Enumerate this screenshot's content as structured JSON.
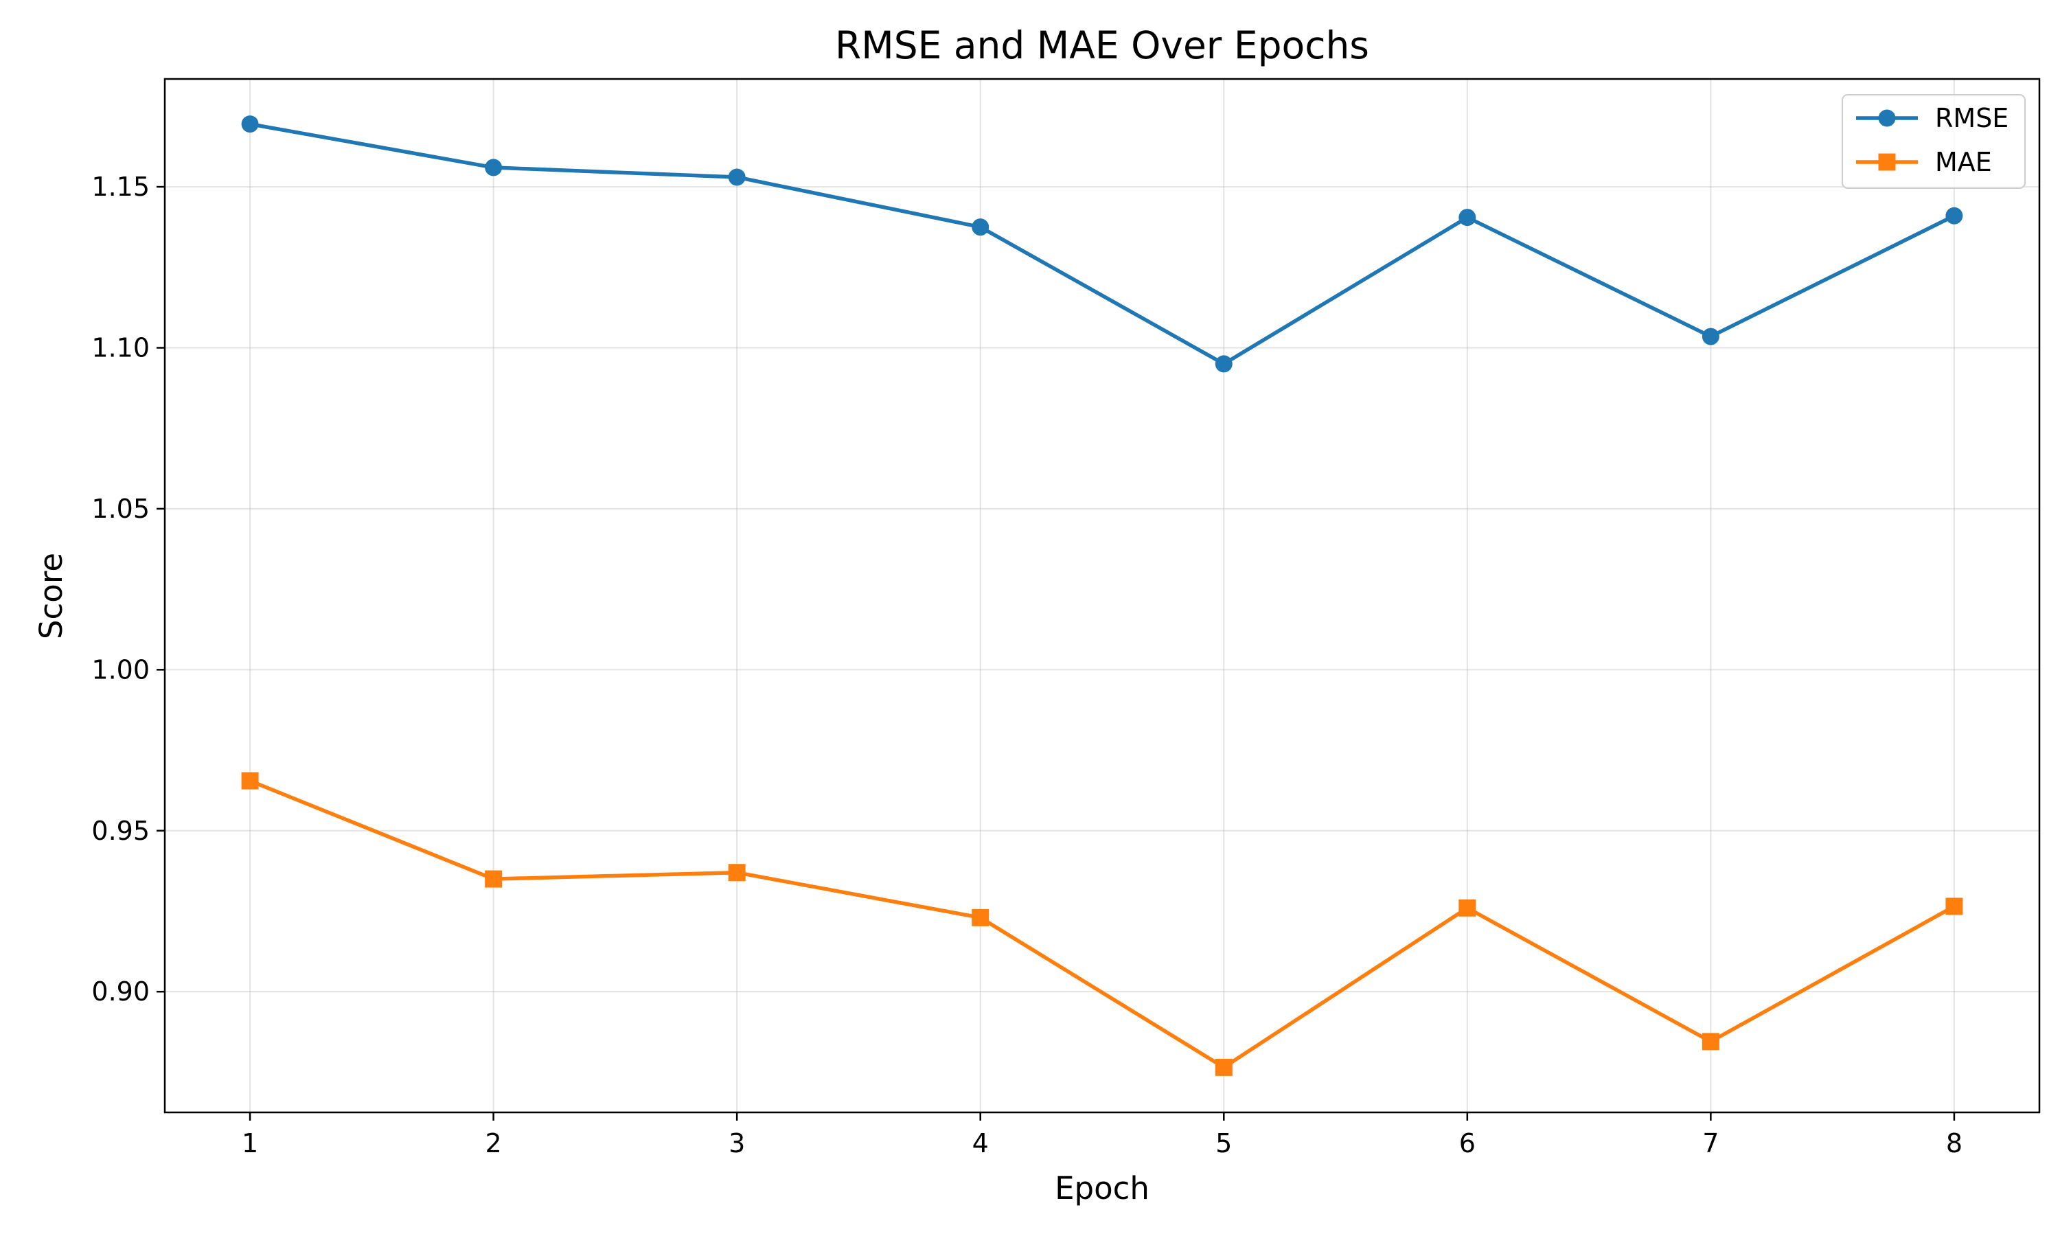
{
  "chart_data": {
    "type": "line",
    "title": "RMSE and MAE Over Epochs",
    "xlabel": "Epoch",
    "ylabel": "Score",
    "x": [
      1,
      2,
      3,
      4,
      5,
      6,
      7,
      8
    ],
    "xlim": [
      0.65,
      8.35
    ],
    "ylim": [
      0.8625,
      1.1835
    ],
    "xticks": [
      1,
      2,
      3,
      4,
      5,
      6,
      7,
      8
    ],
    "yticks": [
      0.9,
      0.95,
      1.0,
      1.05,
      1.1,
      1.15
    ],
    "ytick_labels": [
      "0.90",
      "0.95",
      "1.00",
      "1.05",
      "1.10",
      "1.15"
    ],
    "grid": true,
    "legend_position": "top-right",
    "series": [
      {
        "name": "RMSE",
        "color": "#1f77b4",
        "marker": "circle",
        "values": [
          1.1695,
          1.156,
          1.153,
          1.1375,
          1.095,
          1.1405,
          1.1035,
          1.141
        ]
      },
      {
        "name": "MAE",
        "color": "#ff7f0e",
        "marker": "square",
        "values": [
          0.9655,
          0.935,
          0.937,
          0.923,
          0.8765,
          0.926,
          0.8845,
          0.9265
        ]
      }
    ]
  }
}
